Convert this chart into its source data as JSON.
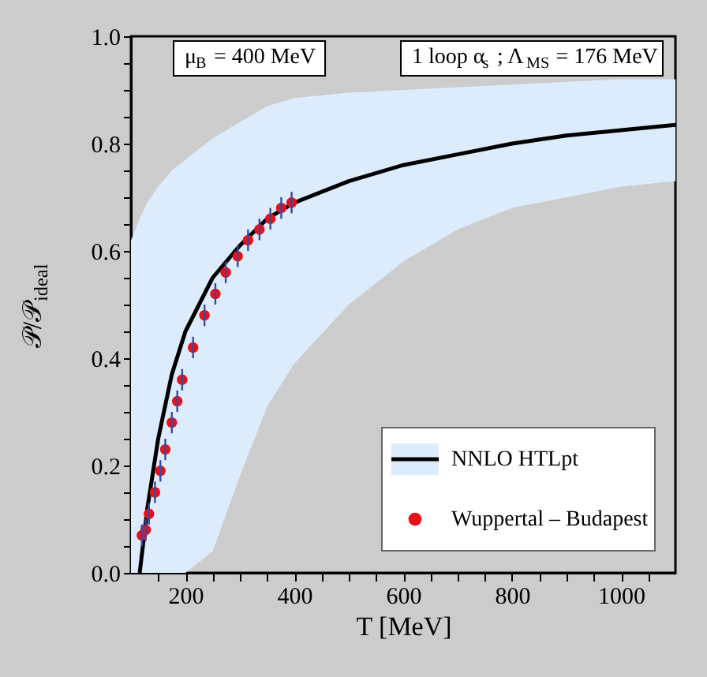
{
  "chart_data": {
    "type": "line",
    "xlabel": "T [MeV]",
    "ylabel": "𝒫/𝒫$_{ideal}$",
    "xlim": [
      100,
      1100
    ],
    "ylim": [
      0,
      1
    ],
    "xticks": [
      {
        "value": 150,
        "label": null
      },
      200,
      {
        "value": 250,
        "label": null
      },
      {
        "value": 300,
        "label": null
      },
      {
        "value": 350,
        "label": null
      },
      400,
      {
        "value": 450,
        "label": null
      },
      {
        "value": 500,
        "label": null
      },
      {
        "value": 550,
        "label": null
      },
      600,
      {
        "value": 650,
        "label": null
      },
      {
        "value": 700,
        "label": null
      },
      {
        "value": 750,
        "label": null
      },
      800,
      {
        "value": 850,
        "label": null
      },
      {
        "value": 900,
        "label": null
      },
      {
        "value": 950,
        "label": null
      },
      1000,
      {
        "value": 1050,
        "label": null
      }
    ],
    "yticks": [
      {
        "value": 0,
        "label": "0.0"
      },
      {
        "value": 0.05,
        "label": null
      },
      {
        "value": 0.1,
        "label": null
      },
      {
        "value": 0.15,
        "label": null
      },
      0.2,
      {
        "value": 0.25,
        "label": null
      },
      {
        "value": 0.3,
        "label": null
      },
      {
        "value": 0.35,
        "label": null
      },
      0.4,
      {
        "value": 0.45,
        "label": null
      },
      {
        "value": 0.5,
        "label": null
      },
      {
        "value": 0.55,
        "label": null
      },
      0.6,
      {
        "value": 0.65,
        "label": null
      },
      {
        "value": 0.7,
        "label": null
      },
      {
        "value": 0.75,
        "label": null
      },
      0.8,
      {
        "value": 0.85,
        "label": null
      },
      {
        "value": 0.9,
        "label": null
      },
      {
        "value": 0.95,
        "label": null
      },
      {
        "value": 1,
        "label": "1.0"
      }
    ],
    "annotations": [
      "μ$_{B}$ = 400 MeV",
      "1 loop α$_{s}$ ; Λ$_{MS}$ = 176 MeV"
    ],
    "legend": "bottom right",
    "series": [
      {
        "name": "NNLO HTLpt",
        "color": "#000000",
        "line_style": "solid",
        "x": [
          100,
          116,
          130,
          150,
          175,
          200,
          250,
          300,
          350,
          400,
          500,
          600,
          700,
          800,
          900,
          1000,
          1100
        ],
        "values": [
          null,
          0,
          0.12,
          0.25,
          0.37,
          0.45,
          0.55,
          0.61,
          0.66,
          0.69,
          0.73,
          0.76,
          0.78,
          0.8,
          0.815,
          0.825,
          0.835
        ],
        "lower": [
          0,
          0,
          0,
          0,
          0,
          0,
          0.04,
          0.18,
          0.31,
          0.39,
          0.5,
          0.58,
          0.64,
          0.68,
          0.7,
          0.72,
          0.73
        ],
        "upper": [
          0.62,
          0.66,
          0.69,
          0.72,
          0.75,
          0.77,
          0.81,
          0.84,
          0.87,
          0.885,
          0.895,
          0.9,
          0.905,
          0.91,
          0.915,
          0.92,
          0.92
        ]
      },
      {
        "name": "Wuppertal – Budapest",
        "type": "scatter",
        "color": "#e8101c",
        "marker": "circle",
        "x": [
          120,
          127,
          133,
          144,
          154,
          163,
          175,
          185,
          194,
          214,
          235,
          255,
          274,
          296,
          315,
          336,
          356,
          376,
          395
        ],
        "values": [
          0.07,
          0.08,
          0.11,
          0.15,
          0.19,
          0.23,
          0.28,
          0.32,
          0.36,
          0.42,
          0.48,
          0.52,
          0.56,
          0.59,
          0.62,
          0.64,
          0.66,
          0.68,
          0.69
        ],
        "errors": [
          0.02,
          0.02,
          0.02,
          0.02,
          0.02,
          0.02,
          0.02,
          0.02,
          0.02,
          0.02,
          0.02,
          0.02,
          0.02,
          0.02,
          0.02,
          0.02,
          0.02,
          0.02,
          0.02
        ]
      }
    ]
  }
}
